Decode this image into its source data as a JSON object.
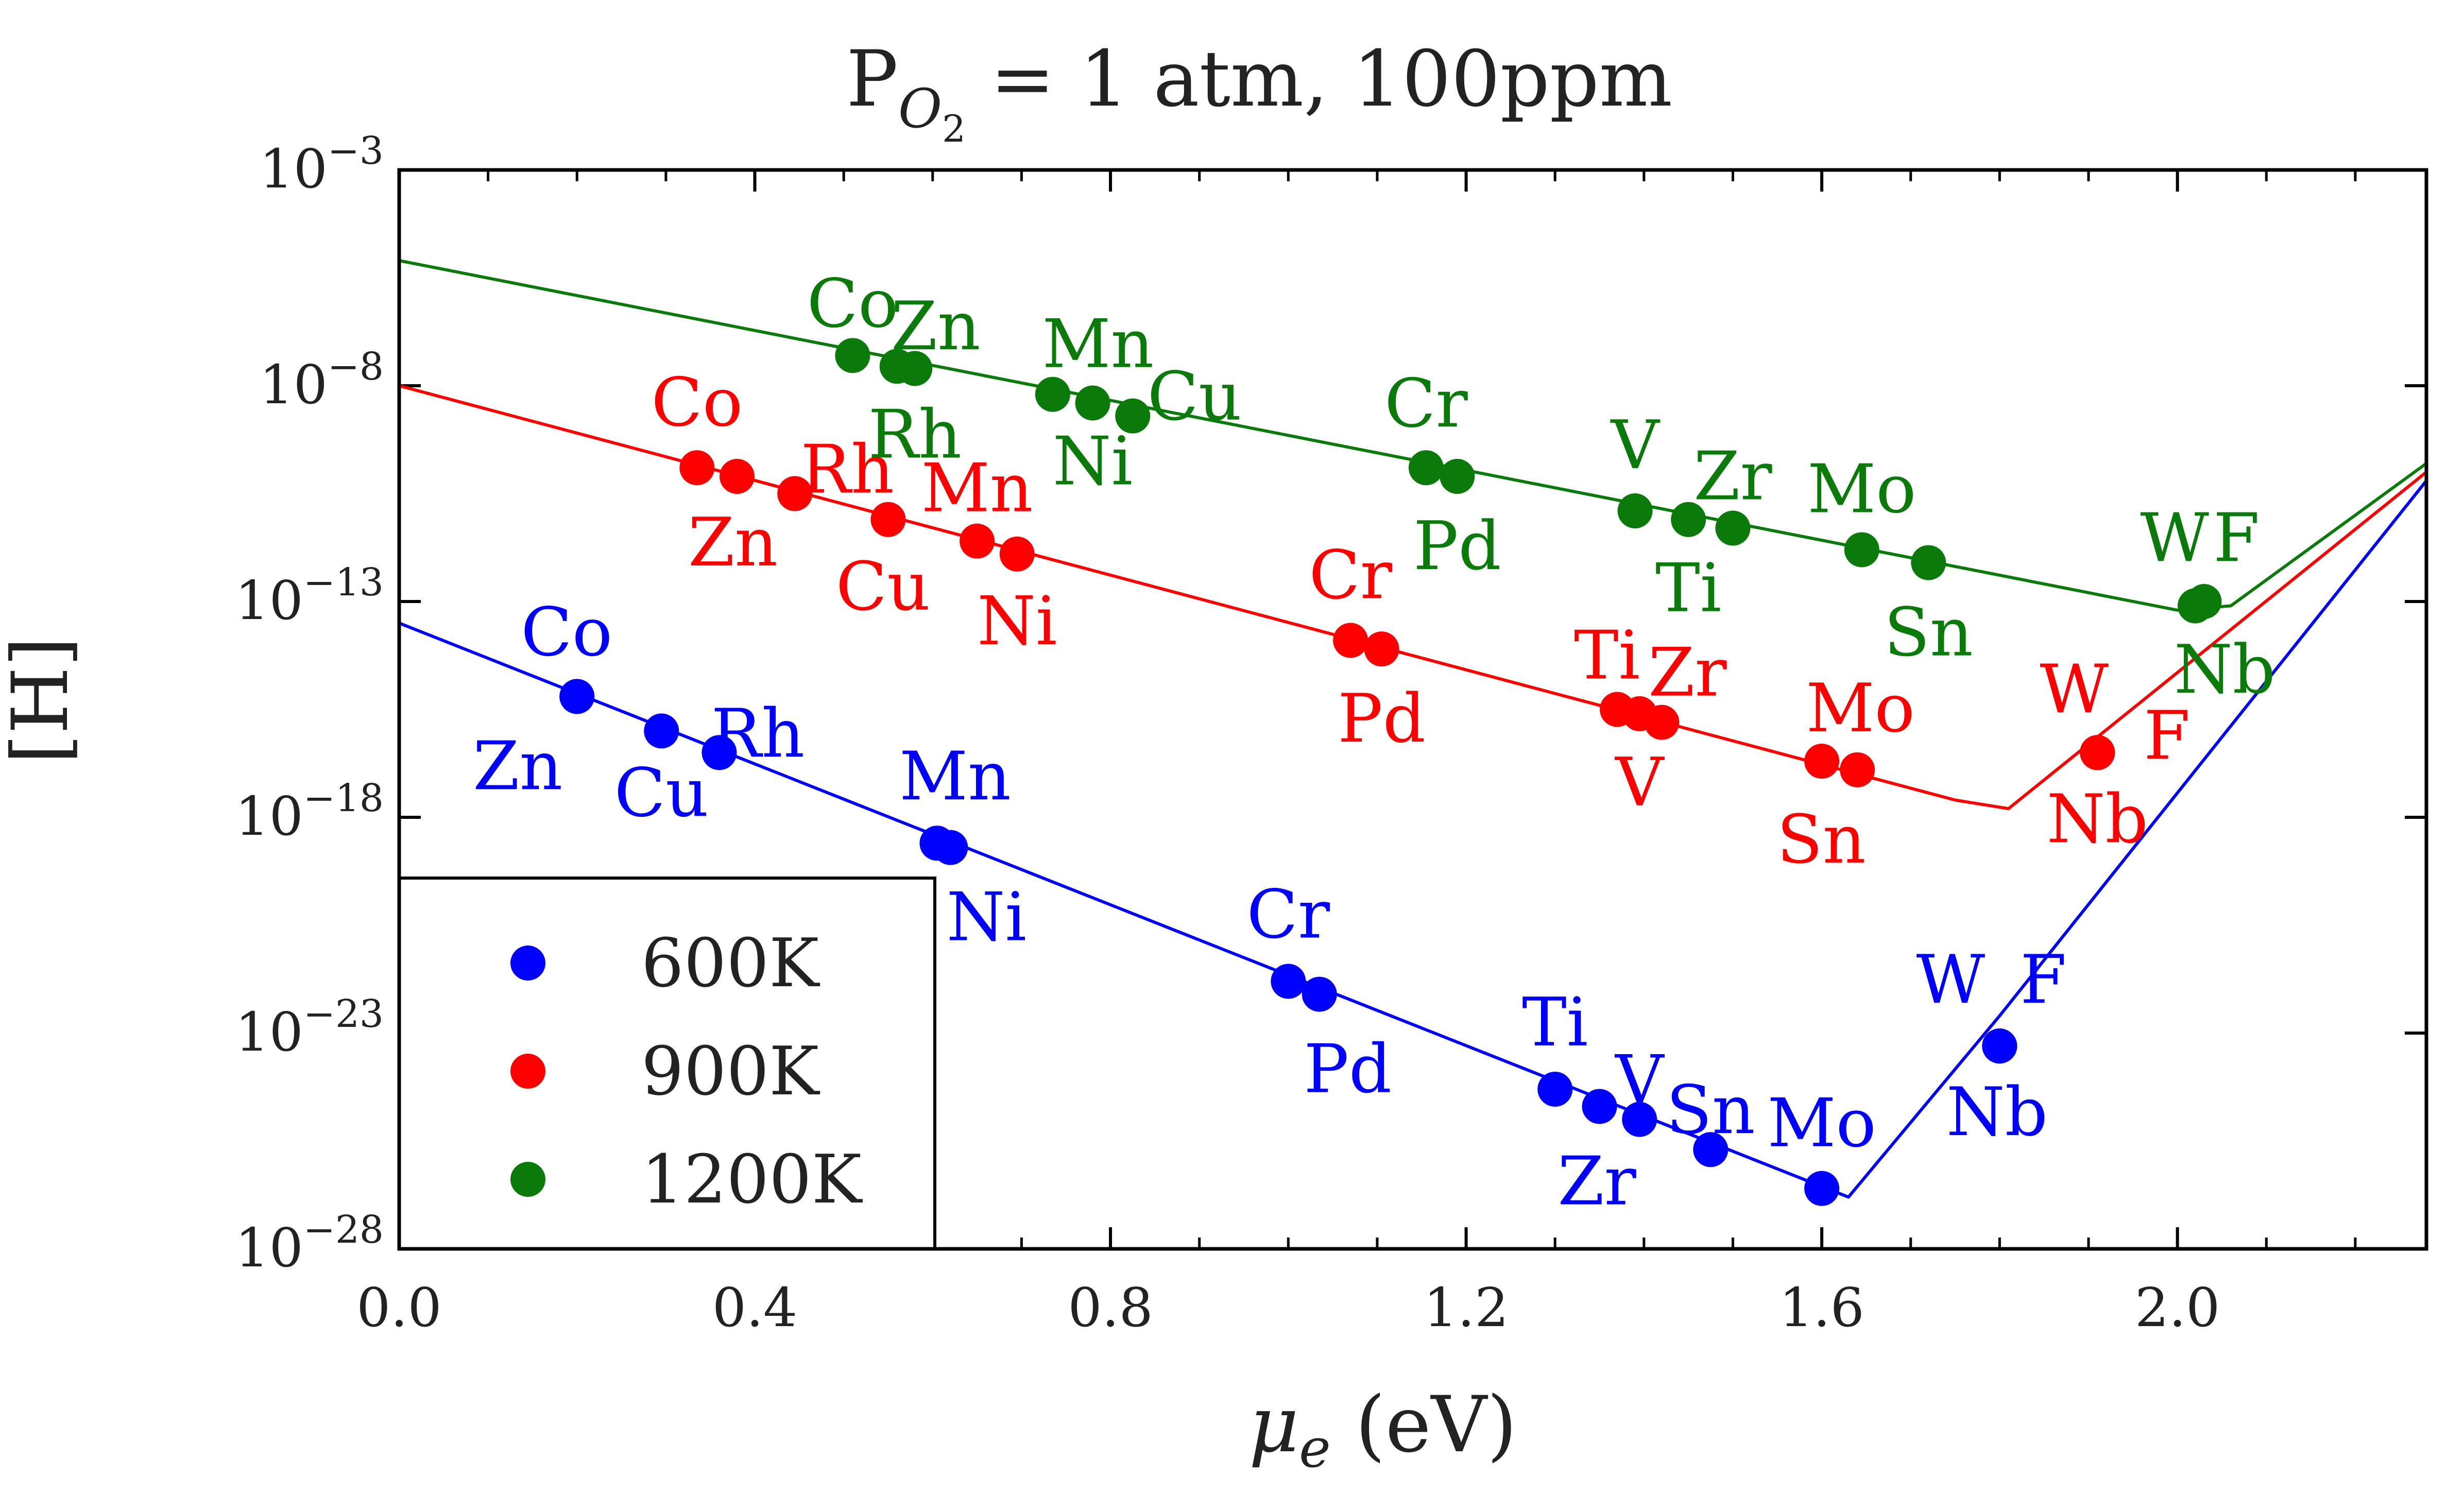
{
  "chart_data": {
    "type": "scatter",
    "title": {
      "base": "P",
      "subscript": "O",
      "subsub": "2",
      "rest": " = 1 atm, 100ppm"
    },
    "xlabel": {
      "symbol": "μ",
      "subscript": "e",
      "unit": " (eV)"
    },
    "ylabel": "[H]",
    "xlim": [
      0.0,
      2.28
    ],
    "ylim_log10": [
      -28,
      -3
    ],
    "x_ticks": [
      0.0,
      0.4,
      0.8,
      1.2,
      1.6,
      2.0
    ],
    "x_tick_labels": [
      "0.0",
      "0.4",
      "0.8",
      "1.2",
      "1.6",
      "2.0"
    ],
    "y_tick_exponents": [
      -3,
      -8,
      -13,
      -18,
      -23,
      -28
    ],
    "y_tick_base": "10",
    "y_log_scale": true,
    "grid": false,
    "legend_position": "lower-left",
    "series": [
      {
        "name": "600K",
        "color": "#0000ff",
        "curve": {
          "x": [
            0.0,
            1.63,
            1.8,
            2.28
          ],
          "log10_y": [
            -13.5,
            -26.8,
            -22.6,
            -10.2
          ]
        },
        "points": [
          {
            "label": "Co",
            "x": 0.2,
            "log10_y": -15.2
          },
          {
            "label": "Zn",
            "x": 0.2,
            "log10_y": -15.2
          },
          {
            "label": "Cu",
            "x": 0.295,
            "log10_y": -16.0
          },
          {
            "label": "Rh",
            "x": 0.36,
            "log10_y": -16.5
          },
          {
            "label": "Mn",
            "x": 0.605,
            "log10_y": -18.6
          },
          {
            "label": "Ni",
            "x": 0.62,
            "log10_y": -18.7
          },
          {
            "label": "Cr",
            "x": 1.0,
            "log10_y": -21.8
          },
          {
            "label": "Pd",
            "x": 1.035,
            "log10_y": -22.1
          },
          {
            "label": "Ti",
            "x": 1.3,
            "log10_y": -24.3
          },
          {
            "label": "Zr",
            "x": 1.35,
            "log10_y": -24.7
          },
          {
            "label": "V",
            "x": 1.395,
            "log10_y": -25.0
          },
          {
            "label": "Sn",
            "x": 1.475,
            "log10_y": -25.7
          },
          {
            "label": "Mo",
            "x": 1.6,
            "log10_y": -26.6
          },
          {
            "label": "W",
            "x": 1.8,
            "log10_y": -23.3
          },
          {
            "label": "F",
            "x": 1.8,
            "log10_y": -23.3
          },
          {
            "label": "Nb",
            "x": 1.8,
            "log10_y": -23.3
          }
        ]
      },
      {
        "name": "900K",
        "color": "#ff0000",
        "curve": {
          "x": [
            0.0,
            1.75,
            1.81,
            2.28
          ],
          "log10_y": [
            -8.0,
            -17.6,
            -17.8,
            -10.0
          ]
        },
        "points": [
          {
            "label": "Co",
            "x": 0.335,
            "log10_y": -9.9
          },
          {
            "label": "Zn",
            "x": 0.38,
            "log10_y": -10.1
          },
          {
            "label": "Rh",
            "x": 0.445,
            "log10_y": -10.5
          },
          {
            "label": "Cu",
            "x": 0.55,
            "log10_y": -11.1
          },
          {
            "label": "Mn",
            "x": 0.65,
            "log10_y": -11.6
          },
          {
            "label": "Ni",
            "x": 0.695,
            "log10_y": -11.9
          },
          {
            "label": "Cr",
            "x": 1.07,
            "log10_y": -13.9
          },
          {
            "label": "Pd",
            "x": 1.105,
            "log10_y": -14.1
          },
          {
            "label": "Ti",
            "x": 1.37,
            "log10_y": -15.5
          },
          {
            "label": "V",
            "x": 1.395,
            "log10_y": -15.6
          },
          {
            "label": "Zr",
            "x": 1.42,
            "log10_y": -15.8
          },
          {
            "label": "Mo",
            "x": 1.6,
            "log10_y": -16.7
          },
          {
            "label": "Sn",
            "x": 1.64,
            "log10_y": -16.9
          },
          {
            "label": "W",
            "x": 1.91,
            "log10_y": -16.5
          },
          {
            "label": "F",
            "x": 1.91,
            "log10_y": -16.5
          },
          {
            "label": "Nb",
            "x": 1.91,
            "log10_y": -16.5
          }
        ]
      },
      {
        "name": "1200K",
        "color": "#0a7a0a",
        "curve": {
          "x": [
            0.0,
            2.0,
            2.06,
            2.28
          ],
          "log10_y": [
            -5.1,
            -13.2,
            -13.1,
            -9.8
          ]
        },
        "points": [
          {
            "label": "Co",
            "x": 0.51,
            "log10_y": -7.3
          },
          {
            "label": "Zn",
            "x": 0.56,
            "log10_y": -7.55
          },
          {
            "label": "Rh",
            "x": 0.58,
            "log10_y": -7.6
          },
          {
            "label": "Mn",
            "x": 0.735,
            "log10_y": -8.2
          },
          {
            "label": "Ni",
            "x": 0.78,
            "log10_y": -8.4
          },
          {
            "label": "Cu",
            "x": 0.825,
            "log10_y": -8.7
          },
          {
            "label": "Cr",
            "x": 1.155,
            "log10_y": -9.9
          },
          {
            "label": "Pd",
            "x": 1.19,
            "log10_y": -10.1
          },
          {
            "label": "V",
            "x": 1.39,
            "log10_y": -10.9
          },
          {
            "label": "Ti",
            "x": 1.45,
            "log10_y": -11.1
          },
          {
            "label": "Zr",
            "x": 1.5,
            "log10_y": -11.3
          },
          {
            "label": "Mo",
            "x": 1.645,
            "log10_y": -11.8
          },
          {
            "label": "Sn",
            "x": 1.72,
            "log10_y": -12.1
          },
          {
            "label": "W",
            "x": 2.02,
            "log10_y": -13.1
          },
          {
            "label": "F",
            "x": 2.02,
            "log10_y": -13.1
          },
          {
            "label": "Nb",
            "x": 2.03,
            "log10_y": -13.0
          }
        ]
      }
    ]
  }
}
